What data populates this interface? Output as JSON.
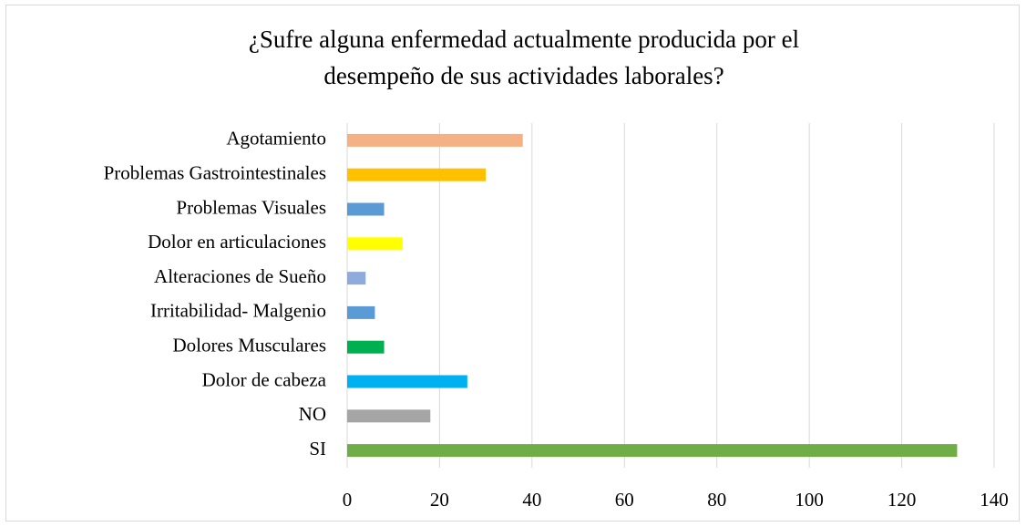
{
  "chart_data": {
    "type": "barh",
    "title": [
      "¿Sufre alguna enfermedad actualmente producida por el",
      "desempeño de sus actividades laborales?"
    ],
    "categories": [
      "Agotamiento",
      "Problemas Gastrointestinales",
      "Problemas Visuales",
      "Dolor en articulaciones",
      "Alteraciones de Sueño",
      "Irritabilidad- Malgenio",
      "Dolores Musculares",
      "Dolor de cabeza",
      "NO",
      "SI"
    ],
    "values": [
      38,
      30,
      8,
      12,
      4,
      6,
      8,
      26,
      18,
      132
    ],
    "colors": [
      "#f4b183",
      "#ffc000",
      "#5b9bd5",
      "#ffff00",
      "#8faadc",
      "#5b9bd5",
      "#00b050",
      "#00b0f0",
      "#a5a5a5",
      "#70ad47"
    ],
    "xlim": [
      0,
      140
    ],
    "xticks": [
      0,
      20,
      40,
      60,
      80,
      100,
      120,
      140
    ],
    "grid": true
  }
}
